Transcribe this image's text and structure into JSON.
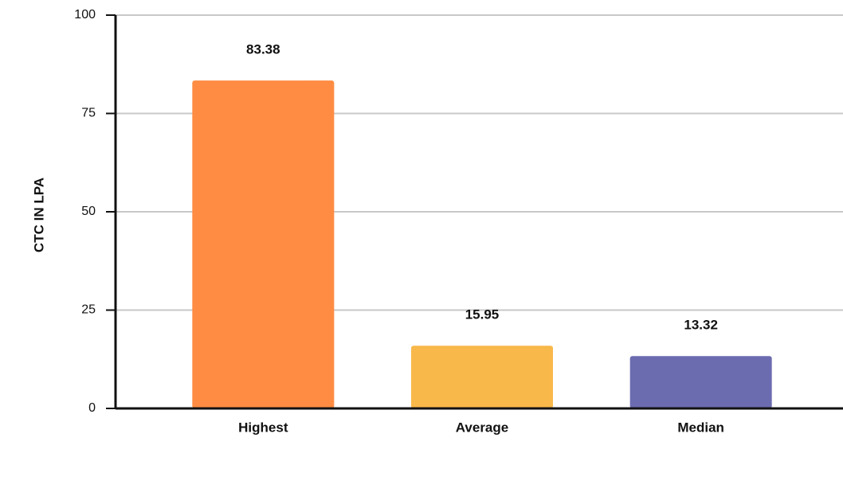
{
  "chart_data": {
    "type": "bar",
    "y_label": "CTC IN LPA",
    "categories": [
      "Highest",
      "Average",
      "Median"
    ],
    "values": [
      83.38,
      15.95,
      13.32
    ],
    "colors": [
      "#ff8c42",
      "#f9b84a",
      "#6b6bb0"
    ],
    "ylim": [
      0,
      100
    ],
    "yticks": [
      0,
      25,
      50,
      75,
      100
    ],
    "grid": true
  }
}
